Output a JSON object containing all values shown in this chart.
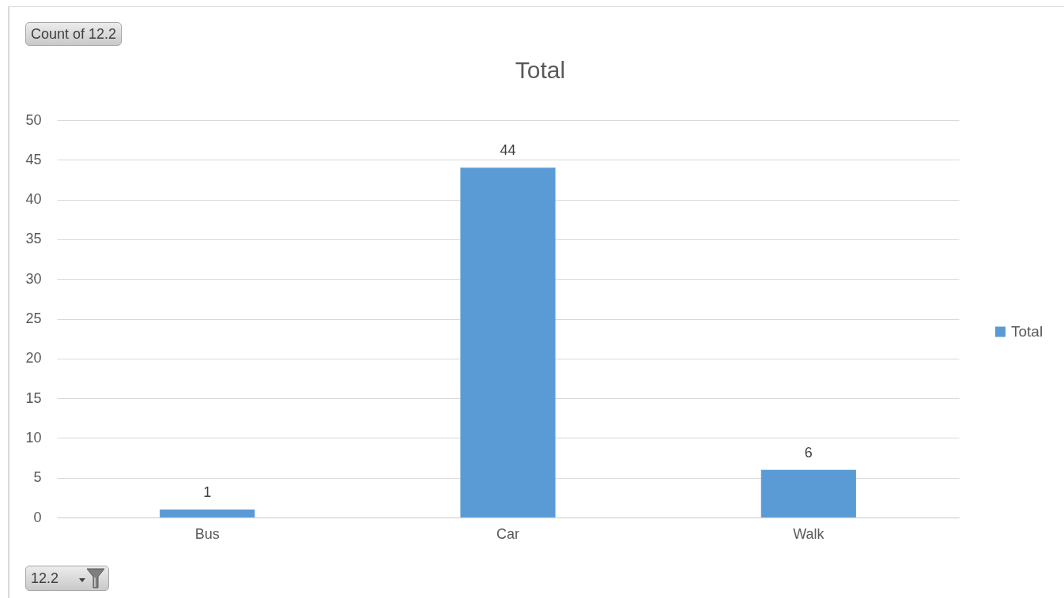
{
  "chart_data": {
    "type": "bar",
    "title": "Total",
    "categories": [
      "Bus",
      "Car",
      "Walk"
    ],
    "series": [
      {
        "name": "Total",
        "color": "#5b9bd5",
        "values": [
          1,
          44,
          6
        ]
      }
    ],
    "ylim": [
      0,
      50
    ],
    "yticks": [
      0,
      5,
      10,
      15,
      20,
      25,
      30,
      35,
      40,
      45,
      50
    ],
    "grid": "y",
    "legend": "right",
    "data_labels": true,
    "annotations": [
      "Count of 12.2",
      "12.2"
    ]
  }
}
